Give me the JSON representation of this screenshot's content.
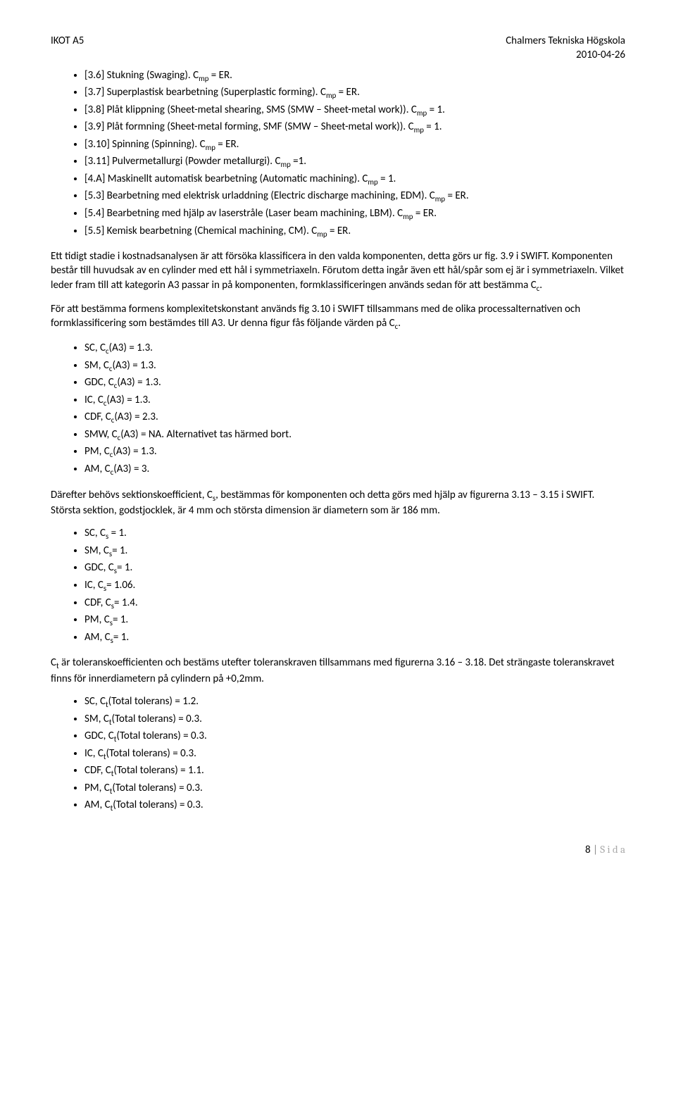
{
  "header": {
    "left": "IKOT A5",
    "right1": "Chalmers Tekniska Högskola",
    "right2": "2010-04-26"
  },
  "list1": [
    "[3.6] Stukning (Swaging). C_mp = ER.",
    "[3.7] Superplastisk bearbetning (Superplastic forming). C_mp = ER.",
    "[3.8] Plåt klippning (Sheet-metal shearing, SMS (SMW – Sheet-metal work)). C_mp = 1.",
    "[3.9] Plåt formning (Sheet-metal forming, SMF (SMW – Sheet-metal work)). C_mp = 1.",
    "[3.10] Spinning (Spinning). C_mp = ER.",
    "[3.11] Pulvermetallurgi (Powder metallurgi). C_mp =1.",
    "[4.A] Maskinellt automatisk bearbetning (Automatic machining). C_mp = 1.",
    "[5.3] Bearbetning med elektrisk urladdning (Electric discharge machining, EDM). C_mp = ER.",
    "[5.4] Bearbetning med hjälp av laserstråle (Laser beam machining, LBM). C_mp = ER.",
    "[5.5] Kemisk bearbetning (Chemical machining, CM). C_mp = ER."
  ],
  "para1": "Ett tidigt stadie i kostnadsanalysen är att försöka klassificera in den valda komponenten, detta görs ur fig. 3.9 i SWIFT. Komponenten består till huvudsak av en cylinder med ett hål i symmetriaxeln. Förutom detta ingår även ett hål/spår som ej är i symmetriaxeln. Vilket leder fram till att kategorin A3 passar in på komponenten, formklassificeringen används sedan för att bestämma C_c.",
  "para2": "För att bestämma formens komplexitetskonstant används fig 3.10 i SWIFT tillsammans med de olika processalternativen och formklassificering som bestämdes till A3. Ur denna figur fås följande värden på C_c.",
  "list2": [
    "SC, C_c(A3) = 1.3.",
    "SM, C_c(A3) = 1.3.",
    "GDC, C_c(A3) = 1.3.",
    "IC, C_c(A3) = 1.3.",
    "CDF, C_c(A3) = 2.3.",
    "SMW, C_c(A3) = NA. Alternativet tas härmed bort.",
    "PM, C_c(A3) = 1.3.",
    "AM, C_c(A3) = 3."
  ],
  "para3": "Därefter behövs sektionskoefficient, C_s, bestämmas för komponenten och detta görs med hjälp av figurerna 3.13 – 3.15 i SWIFT. Största sektion, godstjocklek, är 4 mm och största dimension är diametern som är 186 mm.",
  "list3": [
    "SC, C_s = 1.",
    "SM, C_s= 1.",
    "GDC, C_s= 1.",
    "IC, C_s= 1.06.",
    "CDF, C_s= 1.4.",
    "PM, C_s= 1.",
    "AM, C_s= 1."
  ],
  "para4": "C_t är toleranskoefficienten och bestäms utefter toleranskraven tillsammans med figurerna 3.16 – 3.18. Det strängaste toleranskravet finns för innerdiametern på cylindern på +0,2mm.",
  "list4": [
    "SC, C_t(Total tolerans) = 1.2.",
    "SM, C_t(Total tolerans) = 0.3.",
    "GDC, C_t(Total tolerans) = 0.3.",
    "IC, C_t(Total tolerans) = 0.3.",
    "CDF, C_t(Total tolerans) = 1.1.",
    "PM, C_t(Total tolerans) = 0.3.",
    "AM, C_t(Total tolerans) = 0.3."
  ],
  "footer": {
    "num": "8",
    "sep": " | ",
    "word": "S i d a"
  }
}
